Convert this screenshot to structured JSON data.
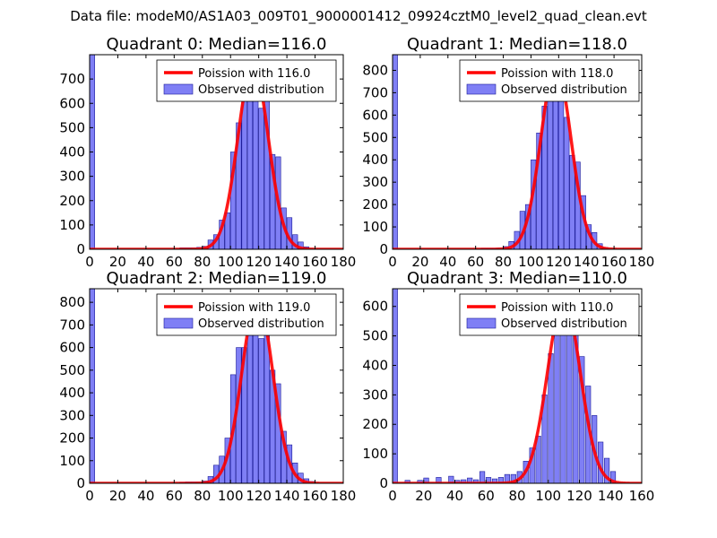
{
  "figure": {
    "suptitle": "Data file: modeM0/AS1A03_009T01_9000001412_09924cztM0_level2_quad_clean.evt"
  },
  "colors": {
    "fit": "#ff0000",
    "hist_fill": "#7f7ff5",
    "hist_edge": "#1a1a99"
  },
  "chart_data": [
    {
      "type": "bar",
      "title": "Quadrant 0: Median=116.0",
      "xlim": [
        0,
        180
      ],
      "ylim": [
        0,
        800
      ],
      "xticks": [
        0,
        20,
        40,
        60,
        80,
        100,
        120,
        140,
        160,
        180
      ],
      "yticks": [
        0,
        100,
        200,
        300,
        400,
        500,
        600,
        700
      ],
      "bin_width": 3.6,
      "bins": [
        [
          0,
          3.6,
          800
        ],
        [
          64,
          67.6,
          6
        ],
        [
          68,
          71.6,
          6
        ],
        [
          72,
          75.6,
          6
        ],
        [
          76,
          79.6,
          8
        ],
        [
          80,
          83.6,
          12
        ],
        [
          84,
          87.6,
          38
        ],
        [
          88,
          91.6,
          60
        ],
        [
          92,
          95.6,
          120
        ],
        [
          96,
          99.6,
          150
        ],
        [
          100,
          103.6,
          400
        ],
        [
          104,
          107.6,
          520
        ],
        [
          108,
          111.6,
          620
        ],
        [
          112,
          115.6,
          740
        ],
        [
          116,
          119.6,
          690
        ],
        [
          120,
          123.6,
          580
        ],
        [
          124,
          127.6,
          610
        ],
        [
          128,
          131.6,
          390
        ],
        [
          132,
          135.6,
          380
        ],
        [
          136,
          139.6,
          170
        ],
        [
          140,
          143.6,
          130
        ],
        [
          144,
          147.6,
          60
        ],
        [
          148,
          151.6,
          30
        ],
        [
          152,
          155.6,
          10
        ]
      ],
      "fit": {
        "mean": 116.0,
        "peak": 760
      },
      "legend": [
        "Poission with 116.0",
        "Observed distribution"
      ]
    },
    {
      "type": "bar",
      "title": "Quadrant 1: Median=118.0",
      "xlim": [
        0,
        180
      ],
      "ylim": [
        0,
        870
      ],
      "xticks": [
        0,
        20,
        40,
        60,
        80,
        100,
        120,
        140,
        160,
        180
      ],
      "yticks": [
        0,
        100,
        200,
        300,
        400,
        500,
        600,
        700,
        800
      ],
      "bin_width": 3.6,
      "bins": [
        [
          0,
          3.6,
          870
        ],
        [
          64,
          67.6,
          5
        ],
        [
          68,
          71.6,
          5
        ],
        [
          72,
          75.6,
          5
        ],
        [
          76,
          79.6,
          6
        ],
        [
          80,
          83.6,
          12
        ],
        [
          84,
          87.6,
          35
        ],
        [
          88,
          91.6,
          80
        ],
        [
          92,
          95.6,
          170
        ],
        [
          96,
          99.6,
          200
        ],
        [
          100,
          103.6,
          400
        ],
        [
          104,
          107.6,
          520
        ],
        [
          108,
          111.6,
          640
        ],
        [
          112,
          115.6,
          780
        ],
        [
          116,
          119.6,
          740
        ],
        [
          120,
          123.6,
          820
        ],
        [
          124,
          127.6,
          590
        ],
        [
          128,
          131.6,
          420
        ],
        [
          132,
          135.6,
          390
        ],
        [
          136,
          139.6,
          240
        ],
        [
          140,
          143.6,
          110
        ],
        [
          144,
          147.6,
          75
        ],
        [
          148,
          151.6,
          25
        ],
        [
          152,
          155.6,
          8
        ]
      ],
      "fit": {
        "mean": 118.0,
        "peak": 820
      },
      "legend": [
        "Poission with 118.0",
        "Observed distribution"
      ]
    },
    {
      "type": "bar",
      "title": "Quadrant 2: Median=119.0",
      "xlim": [
        0,
        180
      ],
      "ylim": [
        0,
        860
      ],
      "xticks": [
        0,
        20,
        40,
        60,
        80,
        100,
        120,
        140,
        160,
        180
      ],
      "yticks": [
        0,
        100,
        200,
        300,
        400,
        500,
        600,
        700,
        800
      ],
      "bin_width": 3.6,
      "bins": [
        [
          0,
          3.6,
          860
        ],
        [
          64,
          67.6,
          5
        ],
        [
          68,
          71.6,
          6
        ],
        [
          72,
          75.6,
          6
        ],
        [
          76,
          79.6,
          6
        ],
        [
          80,
          83.6,
          10
        ],
        [
          84,
          87.6,
          30
        ],
        [
          88,
          91.6,
          80
        ],
        [
          92,
          95.6,
          120
        ],
        [
          96,
          99.6,
          200
        ],
        [
          100,
          103.6,
          480
        ],
        [
          104,
          107.6,
          600
        ],
        [
          108,
          111.6,
          600
        ],
        [
          112,
          115.6,
          730
        ],
        [
          116,
          119.6,
          830
        ],
        [
          120,
          123.6,
          640
        ],
        [
          124,
          127.6,
          680
        ],
        [
          128,
          131.6,
          500
        ],
        [
          132,
          135.6,
          440
        ],
        [
          136,
          139.6,
          230
        ],
        [
          140,
          143.6,
          170
        ],
        [
          144,
          147.6,
          90
        ],
        [
          148,
          151.6,
          45
        ],
        [
          152,
          155.6,
          20
        ],
        [
          156,
          159.6,
          8
        ]
      ],
      "fit": {
        "mean": 119.0,
        "peak": 815
      },
      "legend": [
        "Poission with 119.0",
        "Observed distribution"
      ]
    },
    {
      "type": "bar",
      "title": "Quadrant 3: Median=110.0",
      "xlim": [
        0,
        160
      ],
      "ylim": [
        0,
        660
      ],
      "xticks": [
        0,
        20,
        40,
        60,
        80,
        100,
        120,
        140,
        160
      ],
      "yticks": [
        0,
        100,
        200,
        300,
        400,
        500,
        600
      ],
      "bin_width": 3.2,
      "bins": [
        [
          0,
          3.2,
          660
        ],
        [
          8,
          11.2,
          10
        ],
        [
          16,
          19.2,
          10
        ],
        [
          20,
          23.2,
          18
        ],
        [
          28,
          31.2,
          20
        ],
        [
          36,
          39.2,
          24
        ],
        [
          40,
          43.2,
          10
        ],
        [
          44,
          47.2,
          12
        ],
        [
          48,
          51.2,
          18
        ],
        [
          52,
          55.2,
          12
        ],
        [
          56,
          59.2,
          40
        ],
        [
          60,
          63.2,
          20
        ],
        [
          64,
          67.2,
          15
        ],
        [
          68,
          71.2,
          20
        ],
        [
          72,
          75.2,
          30
        ],
        [
          76,
          79.2,
          30
        ],
        [
          80,
          83.2,
          40
        ],
        [
          84,
          87.2,
          75
        ],
        [
          88,
          91.2,
          120
        ],
        [
          92,
          95.2,
          160
        ],
        [
          96,
          99.2,
          300
        ],
        [
          100,
          103.2,
          440
        ],
        [
          104,
          107.2,
          610
        ],
        [
          108,
          111.2,
          620
        ],
        [
          112,
          115.2,
          600
        ],
        [
          116,
          119.2,
          640
        ],
        [
          120,
          123.2,
          430
        ],
        [
          124,
          127.2,
          330
        ],
        [
          128,
          131.2,
          230
        ],
        [
          132,
          135.2,
          140
        ],
        [
          136,
          139.2,
          85
        ],
        [
          140,
          143.2,
          40
        ]
      ],
      "fit": {
        "mean": 110.0,
        "peak": 625
      },
      "legend": [
        "Poission with 110.0",
        "Observed distribution"
      ]
    }
  ]
}
